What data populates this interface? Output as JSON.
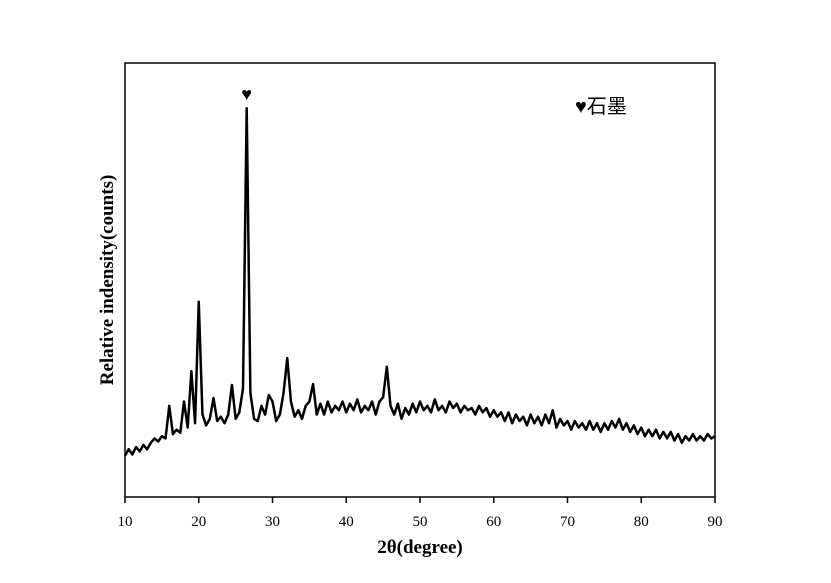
{
  "chart_data": {
    "type": "line",
    "xlabel": "2θ(degree)",
    "ylabel": "Relative indensity(counts)",
    "annotation": "♥",
    "xlim": [
      10,
      90
    ],
    "xticks": [
      10,
      20,
      30,
      40,
      50,
      60,
      70,
      80,
      90
    ],
    "ylim": [
      0,
      100
    ],
    "x": [
      10,
      10.5,
      11,
      11.5,
      12,
      12.5,
      13,
      13.5,
      14,
      14.5,
      15,
      15.5,
      16,
      16.5,
      17,
      17.5,
      18,
      18.5,
      19,
      19.5,
      20,
      20.5,
      21,
      21.5,
      22,
      22.5,
      23,
      23.5,
      24,
      24.5,
      25,
      25.5,
      26,
      26.5,
      27,
      27.5,
      28,
      28.5,
      29,
      29.5,
      30,
      30.5,
      31,
      31.5,
      32,
      32.5,
      33,
      33.5,
      34,
      34.5,
      35,
      35.5,
      36,
      36.5,
      37,
      37.5,
      38,
      38.5,
      39,
      39.5,
      40,
      40.5,
      41,
      41.5,
      42,
      42.5,
      43,
      43.5,
      44,
      44.5,
      45,
      45.5,
      46,
      46.5,
      47,
      47.5,
      48,
      48.5,
      49,
      49.5,
      50,
      50.5,
      51,
      51.5,
      52,
      52.5,
      53,
      53.5,
      54,
      54.5,
      55,
      55.5,
      56,
      56.5,
      57,
      57.5,
      58,
      58.5,
      59,
      59.5,
      60,
      60.5,
      61,
      61.5,
      62,
      62.5,
      63,
      63.5,
      64,
      64.5,
      65,
      65.5,
      66,
      66.5,
      67,
      67.5,
      68,
      68.5,
      69,
      69.5,
      70,
      70.5,
      71,
      71.5,
      72,
      72.5,
      73,
      73.5,
      74,
      74.5,
      75,
      75.5,
      76,
      76.5,
      77,
      77.5,
      78,
      78.5,
      79,
      79.5,
      80,
      80.5,
      81,
      81.5,
      82,
      82.5,
      83,
      83.5,
      84,
      84.5,
      85,
      85.5,
      86,
      86.5,
      87,
      87.5,
      88,
      88.5,
      89,
      89.5,
      90
    ],
    "series": [
      {
        "name": "♥石墨",
        "color": "#000000",
        "values": [
          9.5,
          11,
          9.8,
          11.5,
          10.5,
          12,
          11,
          12.5,
          13.5,
          12.8,
          14,
          13.5,
          21,
          14.5,
          15.5,
          14.8,
          22,
          16,
          29,
          17,
          45,
          19,
          16.5,
          18,
          22.8,
          17.5,
          18.5,
          17,
          19,
          25.8,
          18,
          19.5,
          25,
          89.6,
          24,
          18,
          17.5,
          21,
          19,
          23.5,
          22,
          17.5,
          19,
          24,
          32,
          22,
          18.5,
          20,
          18,
          21,
          22,
          26,
          19,
          21.5,
          19,
          22,
          19.5,
          21,
          20,
          22,
          19.5,
          21.5,
          20,
          22.5,
          19.5,
          21,
          20,
          22,
          19,
          22,
          23,
          30,
          21,
          19,
          21.5,
          18,
          20.5,
          19,
          21.5,
          19.5,
          22,
          20,
          21,
          19.5,
          22.5,
          20,
          21,
          19.5,
          22,
          20.5,
          21.5,
          19.5,
          21,
          20,
          20.5,
          19,
          21,
          19.5,
          20.5,
          18.5,
          20,
          18.5,
          19.5,
          17.5,
          19.5,
          17,
          19,
          17.5,
          18.5,
          16.5,
          19,
          17,
          18.5,
          16.5,
          19,
          17,
          20,
          16,
          18,
          16.5,
          17.5,
          15.5,
          17.5,
          16,
          17,
          15.5,
          17.5,
          15.5,
          17,
          15,
          17,
          15.5,
          17.5,
          16,
          18,
          15.5,
          17,
          15,
          16.5,
          14.5,
          16,
          14,
          15.5,
          14,
          15.5,
          13.5,
          15,
          13.5,
          15,
          13,
          14.5,
          12.5,
          14,
          13,
          14.5,
          13,
          14,
          13,
          14.5,
          13.5,
          14
        ]
      }
    ]
  }
}
